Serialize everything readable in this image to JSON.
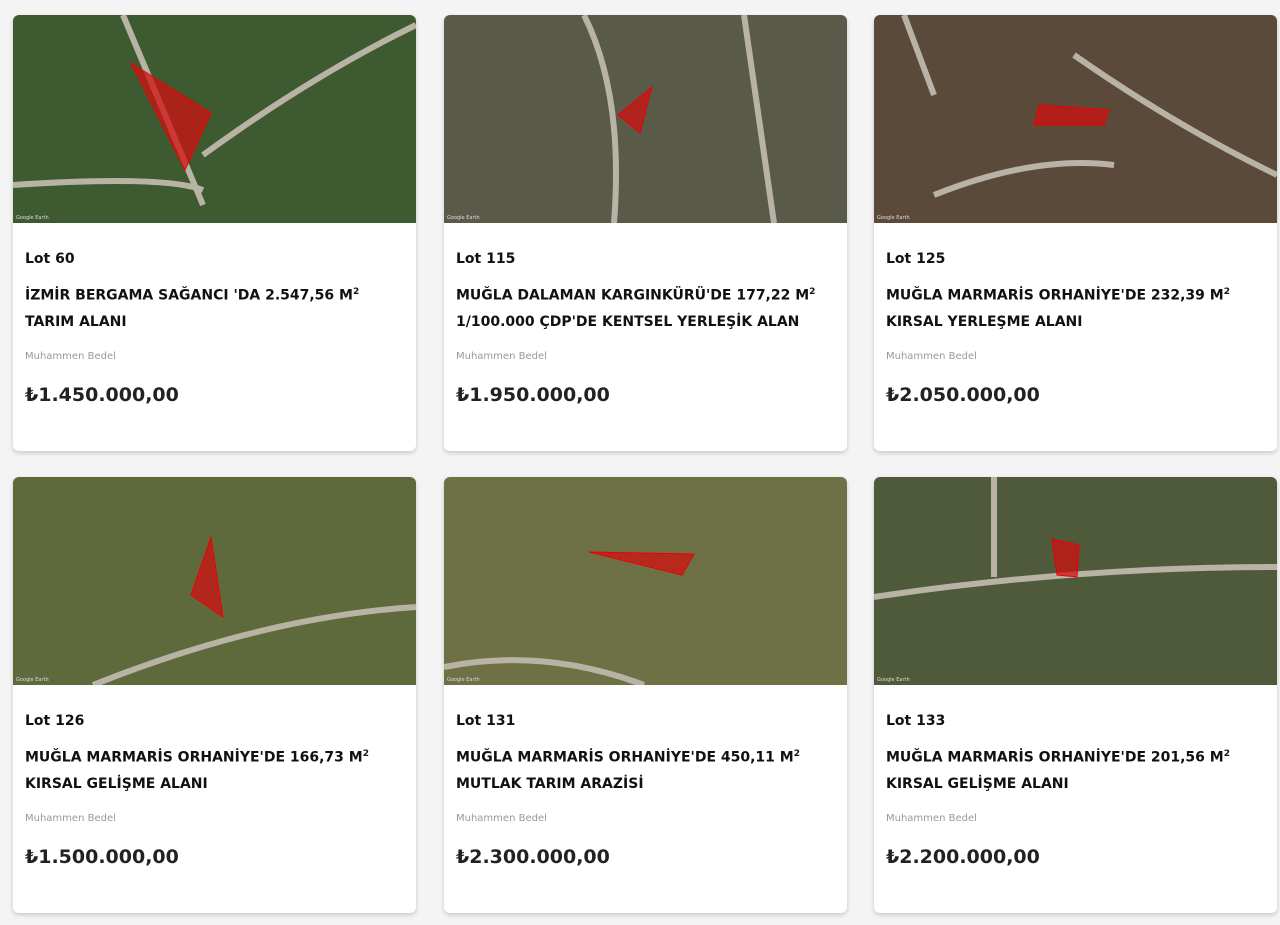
{
  "label_price": "Muhammen Bedel",
  "image_watermark": "Google Earth",
  "colors": {
    "parcel": "#d01010",
    "background": "#f4f4f4"
  },
  "lots": [
    {
      "lot": "Lot 60",
      "title_line1": "İZMİR BERGAMA SAĞANCI 'DA 2.547,56 M",
      "title_line2": "TARIM ALANI",
      "sup": "2",
      "price": "₺1.450.000,00"
    },
    {
      "lot": "Lot 115",
      "title_line1": "MUĞLA DALAMAN KARGINKÜRÜ'DE 177,22 M",
      "title_line2": "1/100.000 ÇDP'DE KENTSEL YERLEŞİK ALAN",
      "sup": "2",
      "price": "₺1.950.000,00"
    },
    {
      "lot": "Lot 125",
      "title_line1": "MUĞLA MARMARİS ORHANİYE'DE 232,39 M",
      "title_line2": "KIRSAL YERLEŞME ALANI",
      "sup": "2",
      "price": "₺2.050.000,00"
    },
    {
      "lot": "Lot 126",
      "title_line1": "MUĞLA MARMARİS ORHANİYE'DE 166,73 M",
      "title_line2": "KIRSAL GELİŞME ALANI",
      "sup": "2",
      "price": "₺1.500.000,00"
    },
    {
      "lot": "Lot 131",
      "title_line1": "MUĞLA MARMARİS ORHANİYE'DE 450,11 M",
      "title_line2": "MUTLAK TARIM ARAZİSİ",
      "sup": "2",
      "price": "₺2.300.000,00"
    },
    {
      "lot": "Lot 133",
      "title_line1": "MUĞLA MARMARİS ORHANİYE'DE 201,56 M",
      "title_line2": "KIRSAL GELİŞME ALANI",
      "sup": "2",
      "price": "₺2.200.000,00"
    }
  ]
}
